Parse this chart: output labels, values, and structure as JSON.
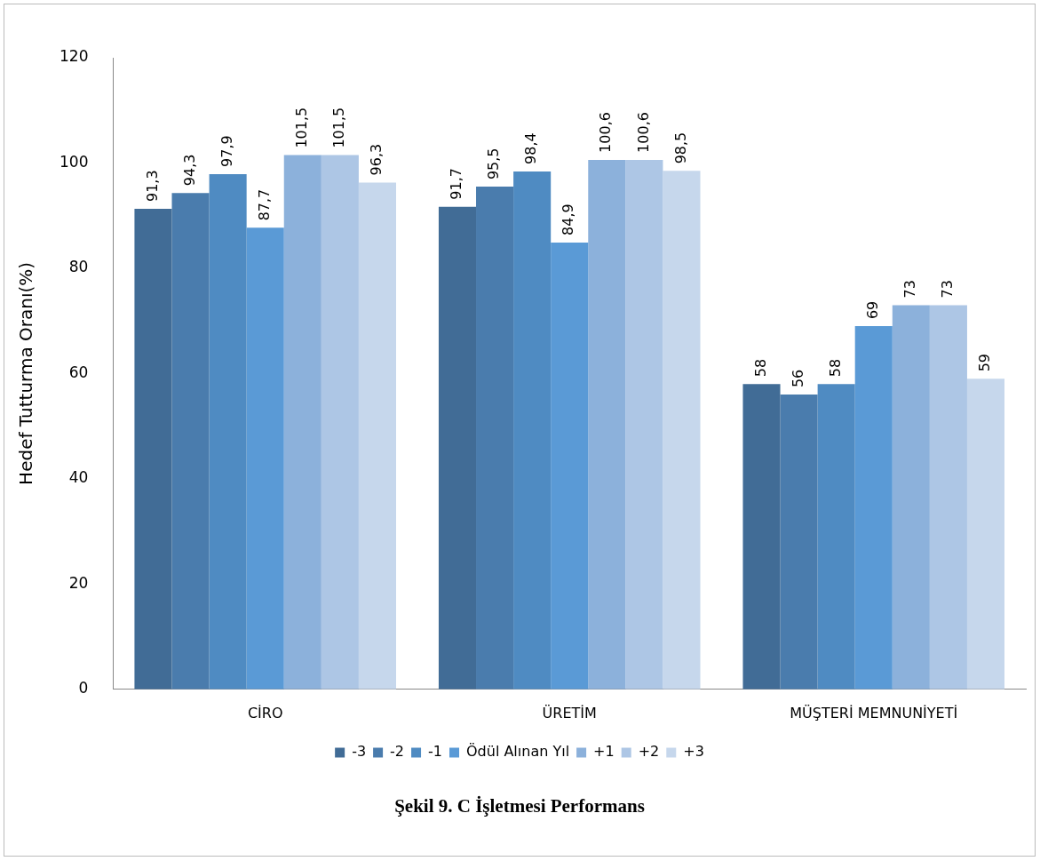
{
  "chart_data": {
    "type": "bar",
    "title": "Şekil 9. C İşletmesi Performans",
    "ylabel": "Hedef Tutturma Oranı(%)",
    "categories": [
      "CİRO",
      "ÜRETİM",
      "MÜŞTERİ MEMNUNİYETİ"
    ],
    "series": [
      {
        "name": "-3",
        "color": "#416c96",
        "values": [
          91.3,
          91.7,
          58
        ],
        "value_labels": [
          "91,3",
          "91,7",
          "58"
        ]
      },
      {
        "name": "-2",
        "color": "#4a7cad",
        "values": [
          94.3,
          95.5,
          56
        ],
        "value_labels": [
          "94,3",
          "95,5",
          "56"
        ]
      },
      {
        "name": "-1",
        "color": "#4f8bc2",
        "values": [
          97.9,
          98.4,
          58
        ],
        "value_labels": [
          "97,9",
          "98,4",
          "58"
        ]
      },
      {
        "name": "Ödül Alınan Yıl",
        "color": "#5a9ad6",
        "values": [
          87.7,
          84.9,
          69
        ],
        "value_labels": [
          "87,7",
          "84,9",
          "69"
        ]
      },
      {
        "name": "+1",
        "color": "#8cb1db",
        "values": [
          101.5,
          100.6,
          73
        ],
        "value_labels": [
          "101,5",
          "100,6",
          "73"
        ]
      },
      {
        "name": "+2",
        "color": "#adc6e5",
        "values": [
          101.5,
          100.6,
          73
        ],
        "value_labels": [
          "101,5",
          "100,6",
          "73"
        ]
      },
      {
        "name": "+3",
        "color": "#c6d7ec",
        "values": [
          96.3,
          98.5,
          59
        ],
        "value_labels": [
          "96,3",
          "98,5",
          "59"
        ]
      }
    ],
    "ylim": [
      0,
      120
    ],
    "yticks": [
      0,
      20,
      40,
      60,
      80,
      100,
      120
    ],
    "grid": false,
    "legend": "bottom"
  }
}
